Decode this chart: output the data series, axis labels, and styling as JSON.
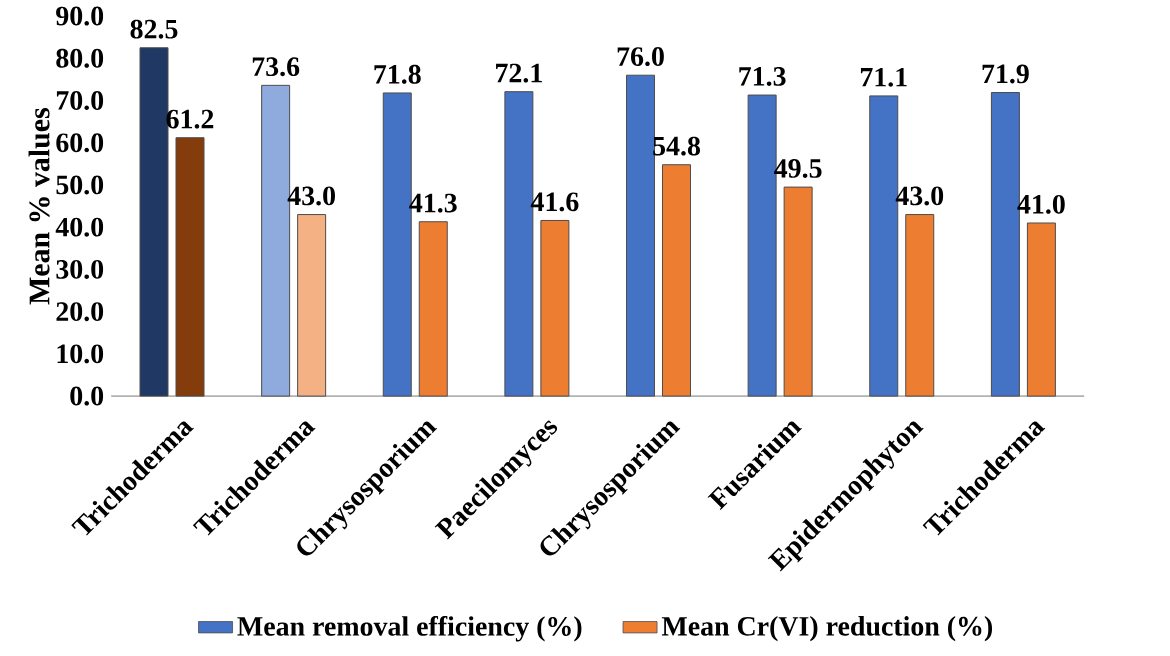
{
  "chart_data": {
    "type": "bar",
    "ylabel": "Mean % values",
    "categories": [
      "Trichoderma",
      "Trichoderma",
      "Chrysosporium",
      "Paecilomyces",
      "Chrysosporium",
      "Fusarium",
      "Epidermophyton",
      "Trichoderma"
    ],
    "series": [
      {
        "name": "Mean removal efficiency (%)",
        "color": "#4472c4",
        "colors": [
          "#1f3864",
          "#8faadc",
          "#4472c4",
          "#4472c4",
          "#4472c4",
          "#4472c4",
          "#4472c4",
          "#4472c4"
        ],
        "values": [
          82.5,
          73.6,
          71.8,
          72.1,
          76.0,
          71.3,
          71.1,
          71.9
        ],
        "value_labels": [
          "82.5",
          "73.6",
          "71.8",
          "72.1",
          "76.0",
          "71.3",
          "71.1",
          "71.9"
        ]
      },
      {
        "name": "Mean Cr(VI) reduction (%)",
        "color": "#ed7d31",
        "colors": [
          "#843c0c",
          "#f4b183",
          "#ed7d31",
          "#ed7d31",
          "#ed7d31",
          "#ed7d31",
          "#ed7d31",
          "#ed7d31"
        ],
        "values": [
          61.2,
          43.0,
          41.3,
          41.6,
          54.8,
          49.5,
          43.0,
          41.0
        ],
        "value_labels": [
          "61.2",
          "43.0",
          "41.3",
          "41.6",
          "54.8",
          "49.5",
          "43.0",
          "41.0"
        ]
      }
    ],
    "ylim": [
      0,
      90
    ],
    "yticks": [
      {
        "value": 0,
        "label": "0.0"
      },
      {
        "value": 10,
        "label": "10.0"
      },
      {
        "value": 20,
        "label": "20.0"
      },
      {
        "value": 30,
        "label": "30.0"
      },
      {
        "value": 40,
        "label": "40.0"
      },
      {
        "value": 50,
        "label": "50.0"
      },
      {
        "value": 60,
        "label": "60.0"
      },
      {
        "value": 70,
        "label": "70.0"
      },
      {
        "value": 80,
        "label": "80.0"
      },
      {
        "value": 90,
        "label": "90.0"
      }
    ],
    "grid": false,
    "legend": "bottom"
  }
}
